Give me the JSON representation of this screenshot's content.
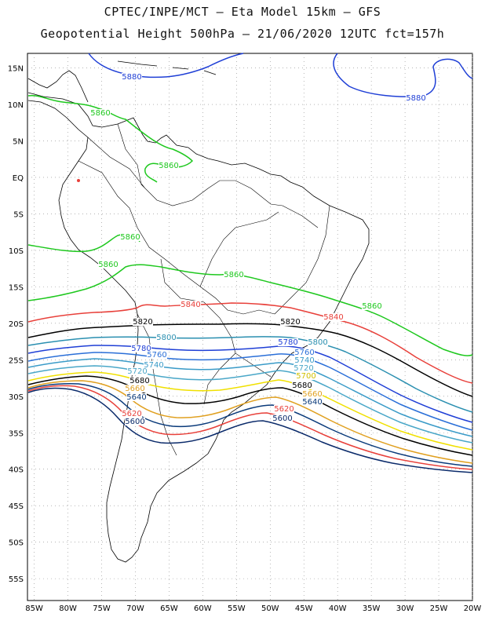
{
  "header": {
    "line1": "CPTEC/INPE/MCT –  Eta Model 15km – GFS",
    "line2": "Geopotential Height 500hPa – 21/06/2020 12UTC fct=157h"
  },
  "axes": {
    "lat_labels": [
      "15N",
      "10N",
      "5N",
      "EQ",
      "5S",
      "10S",
      "15S",
      "20S",
      "25S",
      "30S",
      "35S",
      "40S",
      "45S",
      "50S",
      "55S"
    ],
    "lon_labels": [
      "85W",
      "80W",
      "75W",
      "70W",
      "65W",
      "60W",
      "55W",
      "50W",
      "45W",
      "40W",
      "35W",
      "30W",
      "25W",
      "20W"
    ]
  },
  "contours": [
    {
      "value": "5880",
      "color": "#1f3fd6"
    },
    {
      "value": "5860",
      "color": "#1ec81e"
    },
    {
      "value": "5840",
      "color": "#e8403a"
    },
    {
      "value": "5820",
      "color": "#000000"
    },
    {
      "value": "5800",
      "color": "#2a8fb0"
    },
    {
      "value": "5780",
      "color": "#1f3fd6"
    },
    {
      "value": "5760",
      "color": "#2a6fd8"
    },
    {
      "value": "5740",
      "color": "#3a9bc8"
    },
    {
      "value": "5720",
      "color": "#4aa7c8"
    },
    {
      "value": "5700",
      "color": "#f0e000"
    },
    {
      "value": "5680",
      "color": "#000000"
    },
    {
      "value": "5660",
      "color": "#e0a020"
    },
    {
      "value": "5640",
      "color": "#0a3a7a"
    },
    {
      "value": "5620",
      "color": "#e8403a"
    },
    {
      "value": "5600",
      "color": "#0a2a6a"
    }
  ],
  "contour_labels": [
    {
      "text": "5880",
      "color": "#1f3fd6"
    },
    {
      "text": "5880",
      "color": "#1f3fd6"
    },
    {
      "text": "5860",
      "color": "#1ec81e"
    },
    {
      "text": "5860",
      "color": "#1ec81e"
    },
    {
      "text": "5860",
      "color": "#1ec81e"
    },
    {
      "text": "5860",
      "color": "#1ec81e"
    },
    {
      "text": "5860",
      "color": "#1ec81e"
    },
    {
      "text": "5860",
      "color": "#1ec81e"
    },
    {
      "text": "5840",
      "color": "#e8403a"
    },
    {
      "text": "5840",
      "color": "#e8403a"
    },
    {
      "text": "5820",
      "color": "#000000"
    },
    {
      "text": "5820",
      "color": "#000000"
    },
    {
      "text": "5800",
      "color": "#2a8fb0"
    },
    {
      "text": "5800",
      "color": "#2a8fb0"
    },
    {
      "text": "5780",
      "color": "#1f3fd6"
    },
    {
      "text": "5780",
      "color": "#1f3fd6"
    },
    {
      "text": "5760",
      "color": "#2a6fd8"
    },
    {
      "text": "5760",
      "color": "#2a6fd8"
    },
    {
      "text": "5740",
      "color": "#3a9bc8"
    },
    {
      "text": "5740",
      "color": "#3a9bc8"
    },
    {
      "text": "5720",
      "color": "#4aa7c8"
    },
    {
      "text": "5720",
      "color": "#4aa7c8"
    },
    {
      "text": "5700",
      "color": "#d0c000"
    },
    {
      "text": "5680",
      "color": "#000000"
    },
    {
      "text": "5680",
      "color": "#000000"
    },
    {
      "text": "5660",
      "color": "#e0a020"
    },
    {
      "text": "5660",
      "color": "#e0a020"
    },
    {
      "text": "5640",
      "color": "#0a3a7a"
    },
    {
      "text": "5640",
      "color": "#0a3a7a"
    },
    {
      "text": "5620",
      "color": "#e8403a"
    },
    {
      "text": "5620",
      "color": "#e8403a"
    },
    {
      "text": "5600",
      "color": "#0a2a6a"
    },
    {
      "text": "5600",
      "color": "#0a2a6a"
    }
  ]
}
